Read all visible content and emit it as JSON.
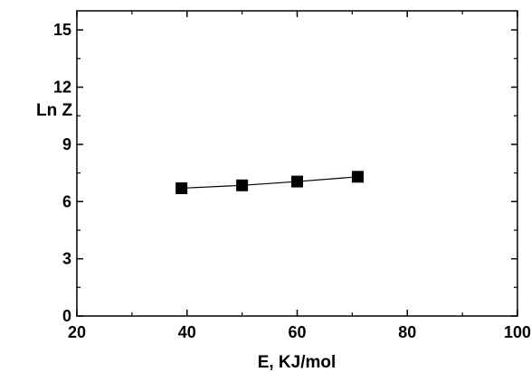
{
  "chart_data": {
    "type": "line",
    "xlabel": "E, KJ/mol",
    "ylabel": "Ln Z",
    "xlim": [
      20,
      100
    ],
    "ylim": [
      0,
      16
    ],
    "x_ticks": [
      20,
      40,
      60,
      80,
      100
    ],
    "y_ticks": [
      0,
      3,
      6,
      9,
      12,
      15
    ],
    "x_tick_labels": [
      "20",
      "40",
      "60",
      "80",
      "100"
    ],
    "y_tick_labels": [
      "0",
      "3",
      "6",
      "9",
      "12",
      "15"
    ],
    "grid": false,
    "series": [
      {
        "marker": "square",
        "color": "#000000",
        "x": [
          39,
          50,
          60,
          71
        ],
        "y": [
          6.7,
          6.85,
          7.05,
          7.3
        ]
      }
    ]
  }
}
